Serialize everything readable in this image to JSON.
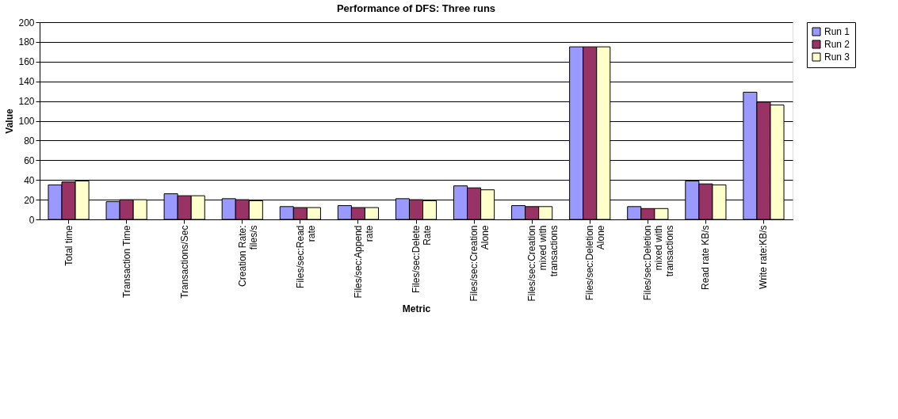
{
  "chart_data": {
    "type": "bar",
    "title": "Performance of DFS: Three runs",
    "xlabel": "Metric",
    "ylabel": "Value",
    "categories": [
      "Total time",
      "Transaction Time",
      "Transactions/Sec",
      "Creation Rate: files/s",
      "Files/sec:Read rate",
      "Files/sec:Append rate",
      "Files/sec:Delete Rate",
      "Files/sec:Creation Alone",
      "Files/sec:Creation mixed with transactions",
      "Files/sec:Deletion Alone",
      "Files/sec:Deletion mixed with transactions",
      "Read rate KB/s",
      "Write rate:KB/s"
    ],
    "series": [
      {
        "name": "Run 1",
        "color": "#9999ff",
        "values": [
          35,
          18,
          26,
          21,
          13,
          14,
          21,
          34,
          14,
          175,
          13,
          39,
          129
        ]
      },
      {
        "name": "Run 2",
        "color": "#993366",
        "values": [
          38,
          20,
          24,
          20,
          12,
          12,
          20,
          32,
          13,
          175,
          11,
          36,
          119
        ]
      },
      {
        "name": "Run 3",
        "color": "#ffffcc",
        "values": [
          39,
          20,
          24,
          19,
          12,
          12,
          19,
          30,
          13,
          175,
          11,
          35,
          116
        ]
      }
    ],
    "ylim": [
      0,
      200
    ],
    "yticks": [
      0,
      20,
      40,
      60,
      80,
      100,
      120,
      140,
      160,
      180,
      200
    ],
    "grid": "y",
    "legend": "right"
  }
}
